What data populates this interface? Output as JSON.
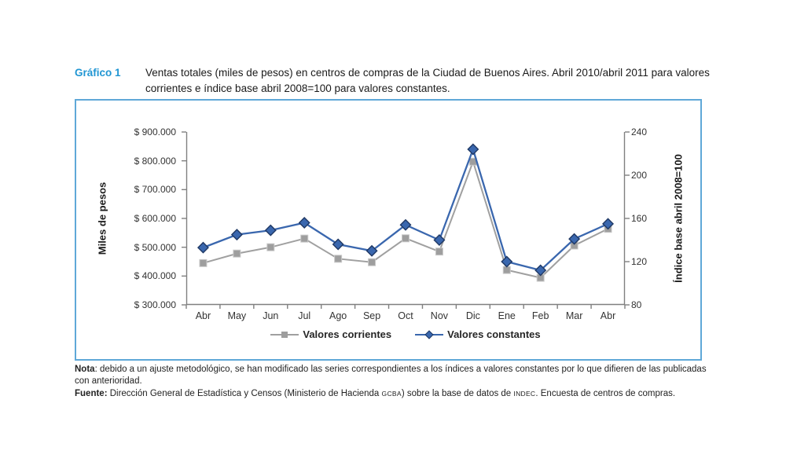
{
  "header": {
    "label": "Gráfico 1",
    "title": "Ventas totales (miles de pesos) en centros de compras de la Ciudad de Buenos Aires. Abril 2010/abril 2011 para valores corrientes e índice base abril 2008=100 para valores constantes."
  },
  "colors": {
    "accent_blue": "#2196d3",
    "panel_border": "#5fa8d8",
    "axis_line": "#808080",
    "corrientes_gray": "#a0a0a0",
    "corrientes_edge": "#c9c9c9",
    "constantes_blue": "#3a67ae",
    "constantes_edge": "#1f3864"
  },
  "chart_data": {
    "type": "line",
    "title": "Ventas totales en centros de compras",
    "categories": [
      "Abr",
      "May",
      "Jun",
      "Jul",
      "Ago",
      "Sep",
      "Oct",
      "Nov",
      "Dic",
      "Ene",
      "Feb",
      "Mar",
      "Abr"
    ],
    "series": [
      {
        "name": "Valores corrientes",
        "axis": "left",
        "marker": "square",
        "color": "#a0a0a0",
        "marker_fill": "#9e9e9e",
        "marker_edge": "#c9c9c9",
        "values": [
          445000,
          478000,
          500000,
          530000,
          460000,
          448000,
          531000,
          485000,
          797000,
          421000,
          394000,
          506000,
          564000
        ]
      },
      {
        "name": "Valores constantes",
        "axis": "right",
        "marker": "diamond",
        "color": "#3a67ae",
        "marker_fill": "#3a67ae",
        "marker_edge": "#1f3864",
        "values": [
          133,
          145,
          149,
          156,
          136,
          130,
          154,
          140,
          224,
          120,
          112,
          141,
          155
        ]
      }
    ],
    "left_axis": {
      "title": "Miles de pesos",
      "min": 300000,
      "max": 900000,
      "step": 100000,
      "tick_labels": [
        "$ 900.000",
        "$ 800.000",
        "$ 700.000",
        "$ 600.000",
        "$ 500.000",
        "$ 400.000",
        "$ 300.000"
      ]
    },
    "right_axis": {
      "title": "Índice base abril 2008=100",
      "min": 80,
      "max": 240,
      "step": 40,
      "tick_labels": [
        "240",
        "200",
        "160",
        "120",
        "80"
      ]
    },
    "legend_position": "bottom",
    "grid": false
  },
  "notes": {
    "nota_label": "Nota",
    "nota_text": ": debido a un ajuste metodológico, se han modificado las series correspondientes a los índices a valores constantes por lo que difieren de las publicadas con anterioridad.",
    "fuente_label": "Fuente:",
    "fuente_pre": " Dirección General de Estadística y Censos (Ministerio de Hacienda ",
    "gcba": "GCBA",
    "fuente_mid": ") sobre la base de datos de ",
    "indec": "INDEC",
    "fuente_post": ". Encuesta de centros de compras."
  }
}
